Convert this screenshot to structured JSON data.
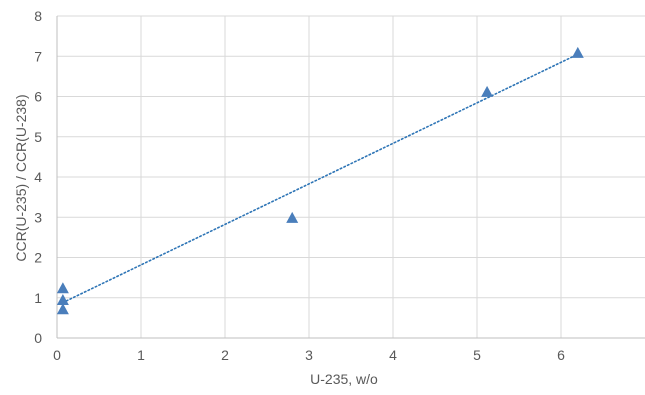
{
  "chart_data": {
    "type": "scatter",
    "title": "",
    "xlabel": "U-235, w/o",
    "ylabel": "CCR(U-235) / CCR(U-238)",
    "xlim": [
      0,
      7
    ],
    "ylim": [
      0,
      8
    ],
    "x_ticks": [
      "0",
      "1",
      "2",
      "3",
      "4",
      "5",
      "6"
    ],
    "y_ticks": [
      "0",
      "1",
      "2",
      "3",
      "4",
      "5",
      "6",
      "7",
      "8"
    ],
    "grid": true,
    "legend": "none",
    "series": [
      {
        "marker": "triangle",
        "color": "#4a7ebb",
        "points": [
          {
            "x": 0.07,
            "y": 0.7
          },
          {
            "x": 0.07,
            "y": 0.93
          },
          {
            "x": 0.07,
            "y": 1.22
          },
          {
            "x": 2.8,
            "y": 2.97
          },
          {
            "x": 5.12,
            "y": 6.1
          },
          {
            "x": 6.2,
            "y": 7.07
          }
        ]
      }
    ],
    "trendline": {
      "style": "dotted",
      "color": "#2e75b6",
      "from": {
        "x": 0.07,
        "y": 0.88
      },
      "to": {
        "x": 6.2,
        "y": 7.05
      }
    }
  }
}
